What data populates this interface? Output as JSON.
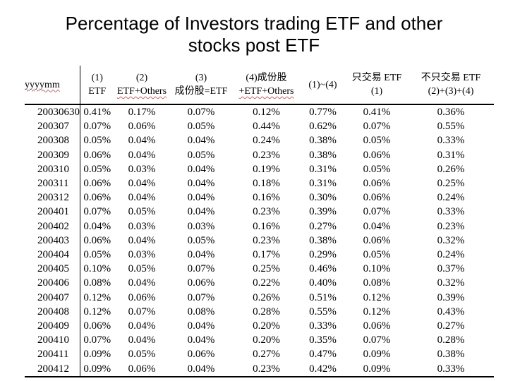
{
  "title": {
    "line1": "Percentage of Investors trading ETF and other",
    "line2": "stocks post ETF"
  },
  "colors": {
    "background": "#ffffff",
    "text": "#000000",
    "rule": "#000000",
    "spellcheck_squiggle": "#c06868"
  },
  "table": {
    "header": [
      {
        "text": "yyyymm"
      },
      {
        "line1": "(1)",
        "line2": "ETF"
      },
      {
        "line1": "(2)",
        "line2": "ETF+Others"
      },
      {
        "line1": "(3)",
        "line2": "成份股=ETF"
      },
      {
        "line1": "(4)成份股",
        "line2": "+ETF+Others"
      },
      {
        "text": "(1)~(4)"
      },
      {
        "line1": "只交易 ETF",
        "line2": "(1)"
      },
      {
        "line1": "不只交易 ETF",
        "line2": "(2)+(3)+(4)"
      }
    ],
    "rows": [
      {
        "month": "20030630",
        "values": [
          "0.41%",
          "0.17%",
          "0.07%",
          "0.12%",
          "0.77%",
          "0.41%",
          "0.36%"
        ]
      },
      {
        "month": "200307",
        "values": [
          "0.07%",
          "0.06%",
          "0.05%",
          "0.44%",
          "0.62%",
          "0.07%",
          "0.55%"
        ]
      },
      {
        "month": "200308",
        "values": [
          "0.05%",
          "0.04%",
          "0.04%",
          "0.24%",
          "0.38%",
          "0.05%",
          "0.33%"
        ]
      },
      {
        "month": "200309",
        "values": [
          "0.06%",
          "0.04%",
          "0.05%",
          "0.23%",
          "0.38%",
          "0.06%",
          "0.31%"
        ]
      },
      {
        "month": "200310",
        "values": [
          "0.05%",
          "0.03%",
          "0.04%",
          "0.19%",
          "0.31%",
          "0.05%",
          "0.26%"
        ]
      },
      {
        "month": "200311",
        "values": [
          "0.06%",
          "0.04%",
          "0.04%",
          "0.18%",
          "0.31%",
          "0.06%",
          "0.25%"
        ]
      },
      {
        "month": "200312",
        "values": [
          "0.06%",
          "0.04%",
          "0.04%",
          "0.16%",
          "0.30%",
          "0.06%",
          "0.24%"
        ]
      },
      {
        "month": "200401",
        "values": [
          "0.07%",
          "0.05%",
          "0.04%",
          "0.23%",
          "0.39%",
          "0.07%",
          "0.33%"
        ]
      },
      {
        "month": "200402",
        "values": [
          "0.04%",
          "0.03%",
          "0.03%",
          "0.16%",
          "0.27%",
          "0.04%",
          "0.23%"
        ]
      },
      {
        "month": "200403",
        "values": [
          "0.06%",
          "0.04%",
          "0.05%",
          "0.23%",
          "0.38%",
          "0.06%",
          "0.32%"
        ]
      },
      {
        "month": "200404",
        "values": [
          "0.05%",
          "0.03%",
          "0.04%",
          "0.17%",
          "0.29%",
          "0.05%",
          "0.24%"
        ]
      },
      {
        "month": "200405",
        "values": [
          "0.10%",
          "0.05%",
          "0.07%",
          "0.25%",
          "0.46%",
          "0.10%",
          "0.37%"
        ]
      },
      {
        "month": "200406",
        "values": [
          "0.08%",
          "0.04%",
          "0.06%",
          "0.22%",
          "0.40%",
          "0.08%",
          "0.32%"
        ]
      },
      {
        "month": "200407",
        "values": [
          "0.12%",
          "0.06%",
          "0.07%",
          "0.26%",
          "0.51%",
          "0.12%",
          "0.39%"
        ]
      },
      {
        "month": "200408",
        "values": [
          "0.12%",
          "0.07%",
          "0.08%",
          "0.28%",
          "0.55%",
          "0.12%",
          "0.43%"
        ]
      },
      {
        "month": "200409",
        "values": [
          "0.06%",
          "0.04%",
          "0.04%",
          "0.20%",
          "0.33%",
          "0.06%",
          "0.27%"
        ]
      },
      {
        "month": "200410",
        "values": [
          "0.07%",
          "0.04%",
          "0.04%",
          "0.20%",
          "0.35%",
          "0.07%",
          "0.28%"
        ]
      },
      {
        "month": "200411",
        "values": [
          "0.09%",
          "0.05%",
          "0.06%",
          "0.27%",
          "0.47%",
          "0.09%",
          "0.38%"
        ]
      },
      {
        "month": "200412",
        "values": [
          "0.09%",
          "0.06%",
          "0.04%",
          "0.23%",
          "0.42%",
          "0.09%",
          "0.33%"
        ]
      }
    ]
  }
}
